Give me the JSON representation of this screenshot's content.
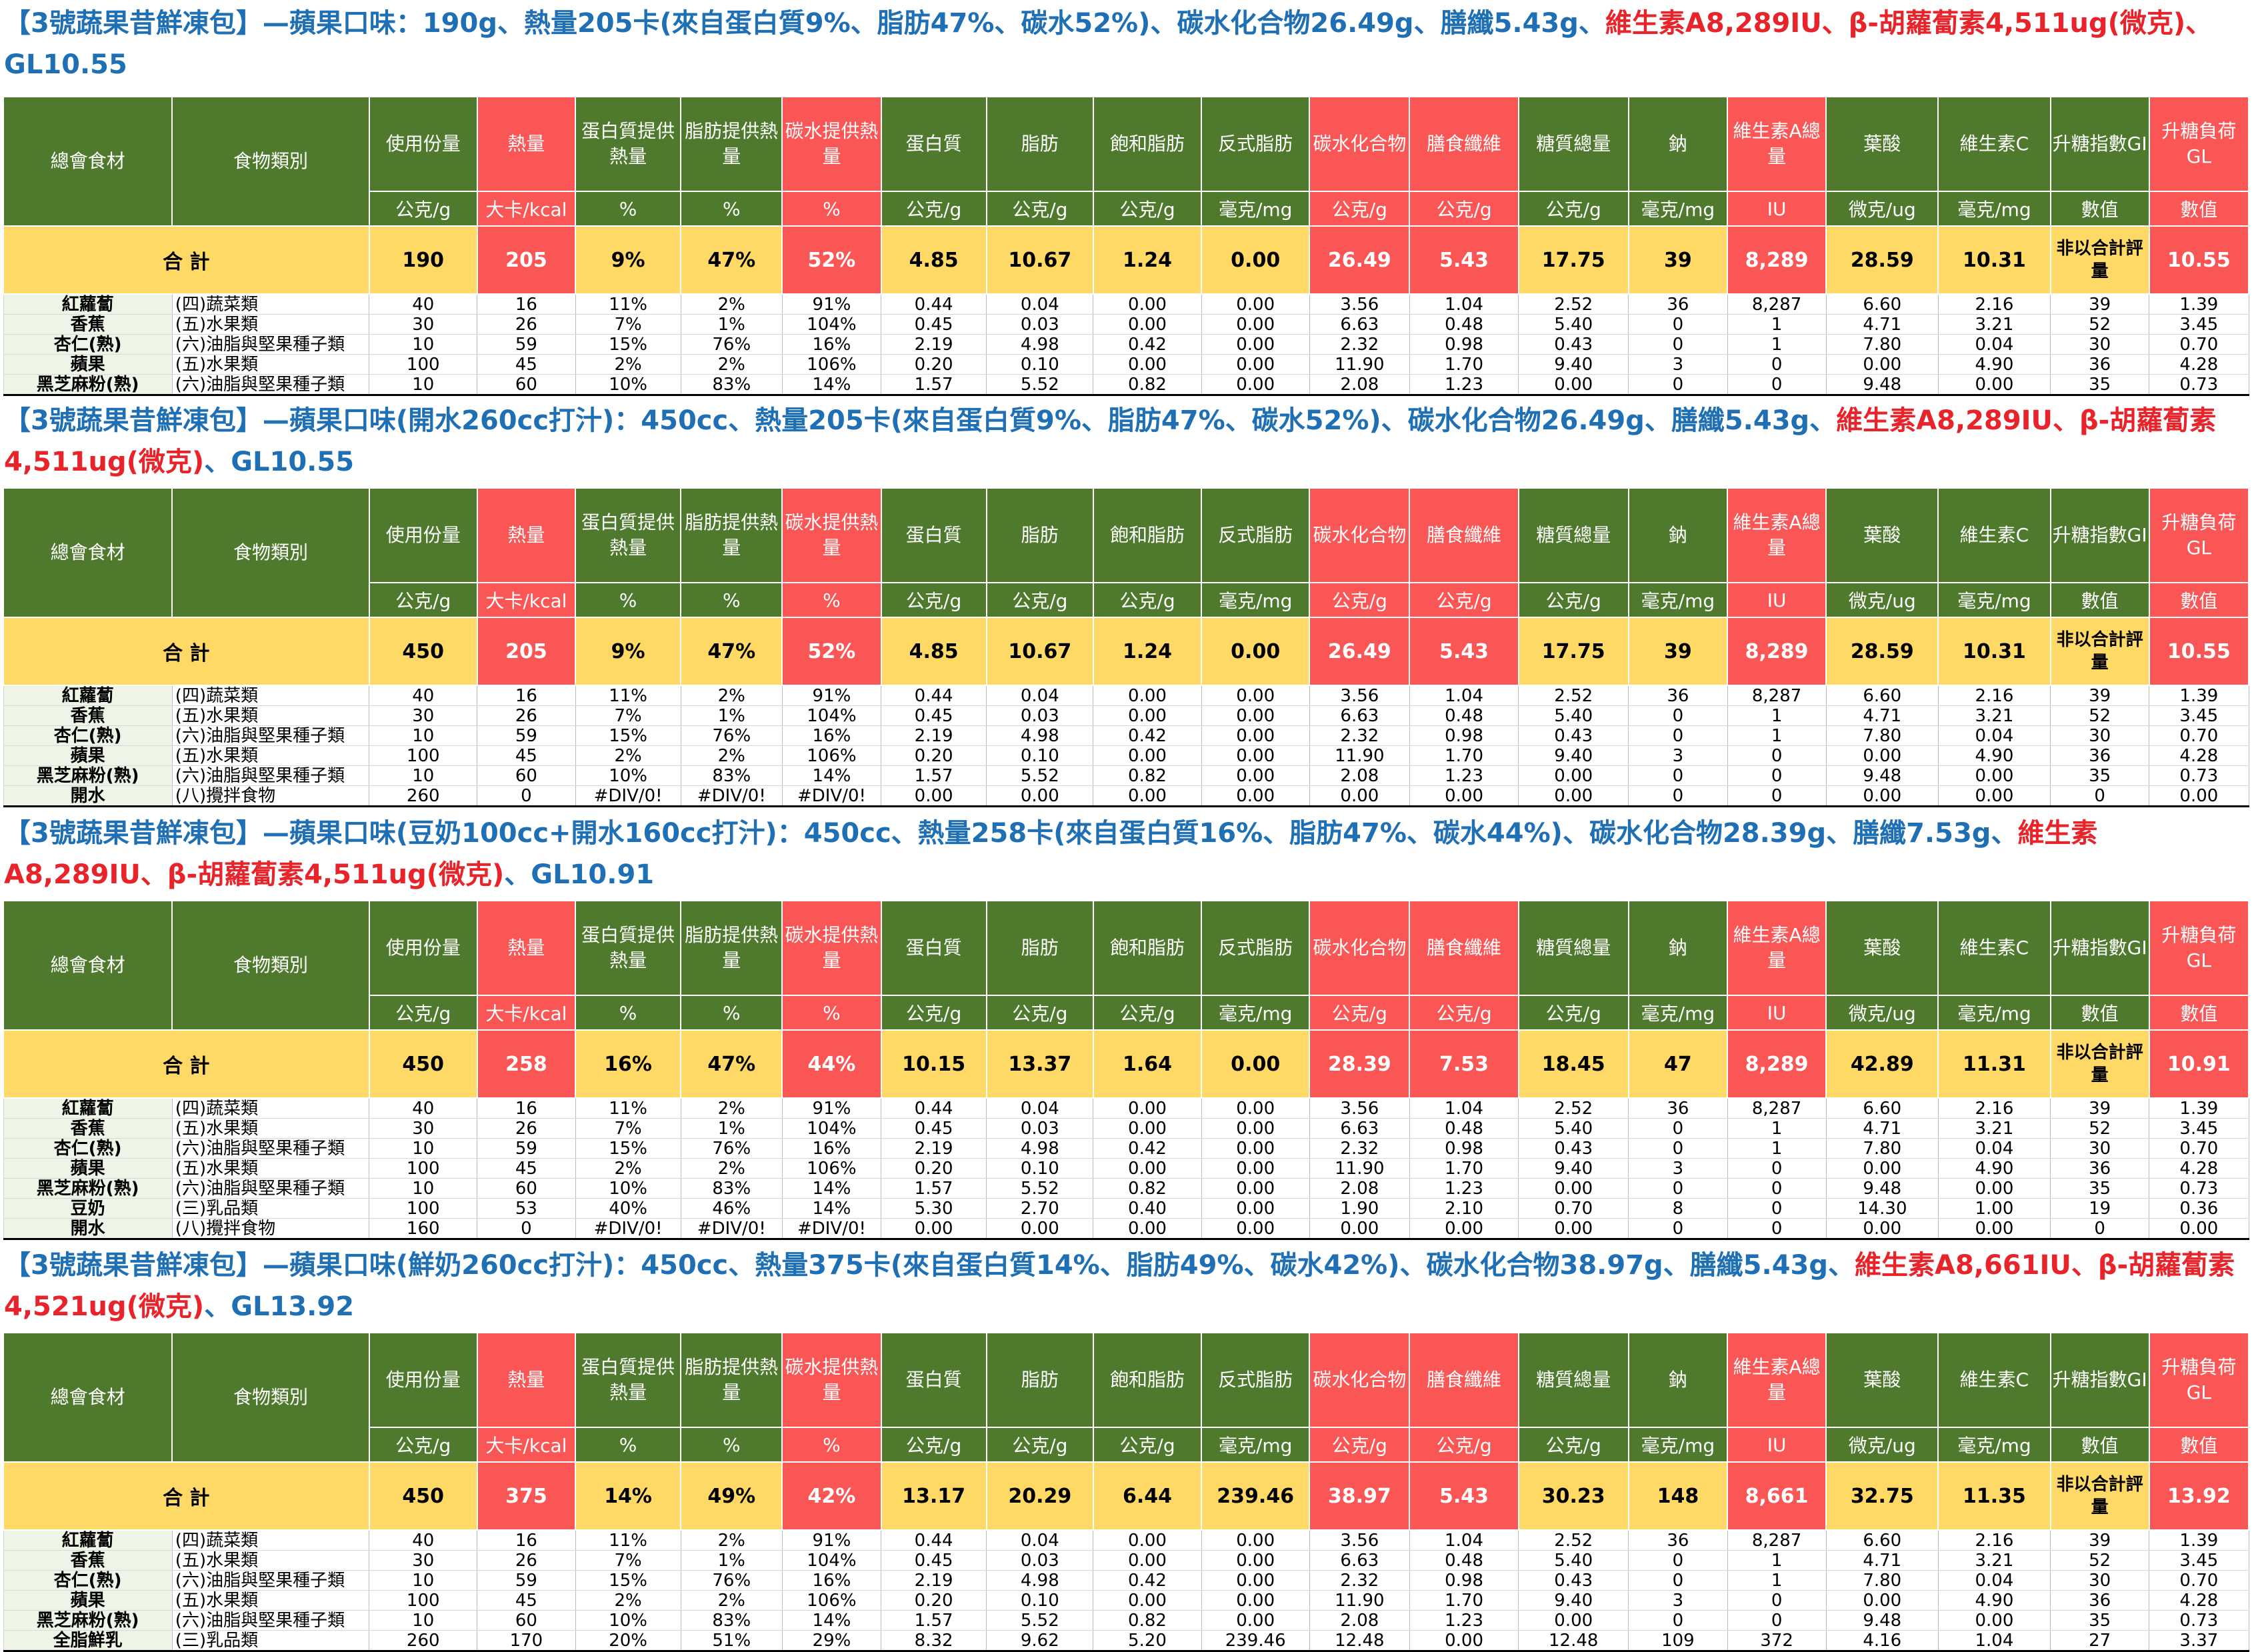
{
  "headers": {
    "names": [
      "總會食材",
      "食物類別",
      "使用份量",
      "熱量",
      "蛋白質提供熱量",
      "脂肪提供熱量",
      "碳水提供熱量",
      "蛋白質",
      "脂肪",
      "飽和脂肪",
      "反式脂肪",
      "碳水化合物",
      "膳食纖維",
      "糖質總量",
      "鈉",
      "維生素A總量",
      "葉酸",
      "維生素C",
      "升糖指數GI",
      "升糖負荷GL"
    ],
    "units": [
      "公克/g",
      "大卡/kcal",
      "%",
      "%",
      "%",
      "公克/g",
      "公克/g",
      "公克/g",
      "毫克/mg",
      "公克/g",
      "公克/g",
      "公克/g",
      "毫克/mg",
      "IU",
      "微克/ug",
      "毫克/mg",
      "數值",
      "數值"
    ],
    "total_label": "合 計",
    "gi_total": "非以合計評量"
  },
  "sections": [
    {
      "title_parts": [
        {
          "text": "【3號蔬果昔鮮凍包】—蘋果口味：190g、熱量205卡(來自蛋白質9%、脂肪47%、碳水52%)、碳水化合物26.49g、膳纖5.43g、",
          "red": false
        },
        {
          "text": "維生素A8,289IU、β-胡蘿蔔素4,511ug(微克)、",
          "red": true
        },
        {
          "text": "GL10.55",
          "red": false
        }
      ],
      "total": [
        "190",
        "205",
        "9%",
        "47%",
        "52%",
        "4.85",
        "10.67",
        "1.24",
        "0.00",
        "26.49",
        "5.43",
        "17.75",
        "39",
        "8,289",
        "28.59",
        "10.31",
        "10.55"
      ],
      "rows": [
        [
          "紅蘿蔔",
          "(四)蔬菜類",
          "40",
          "16",
          "11%",
          "2%",
          "91%",
          "0.44",
          "0.04",
          "0.00",
          "0.00",
          "3.56",
          "1.04",
          "2.52",
          "36",
          "8,287",
          "6.60",
          "2.16",
          "39",
          "1.39"
        ],
        [
          "香蕉",
          "(五)水果類",
          "30",
          "26",
          "7%",
          "1%",
          "104%",
          "0.45",
          "0.03",
          "0.00",
          "0.00",
          "6.63",
          "0.48",
          "5.40",
          "0",
          "1",
          "4.71",
          "3.21",
          "52",
          "3.45"
        ],
        [
          "杏仁(熟)",
          "(六)油脂與堅果種子類",
          "10",
          "59",
          "15%",
          "76%",
          "16%",
          "2.19",
          "4.98",
          "0.42",
          "0.00",
          "2.32",
          "0.98",
          "0.43",
          "0",
          "1",
          "7.80",
          "0.04",
          "30",
          "0.70"
        ],
        [
          "蘋果",
          "(五)水果類",
          "100",
          "45",
          "2%",
          "2%",
          "106%",
          "0.20",
          "0.10",
          "0.00",
          "0.00",
          "11.90",
          "1.70",
          "9.40",
          "3",
          "0",
          "0.00",
          "4.90",
          "36",
          "4.28"
        ],
        [
          "黑芝麻粉(熟)",
          "(六)油脂與堅果種子類",
          "10",
          "60",
          "10%",
          "83%",
          "14%",
          "1.57",
          "5.52",
          "0.82",
          "0.00",
          "2.08",
          "1.23",
          "0.00",
          "0",
          "0",
          "9.48",
          "0.00",
          "35",
          "0.73"
        ]
      ]
    },
    {
      "title_parts": [
        {
          "text": "【3號蔬果昔鮮凍包】—蘋果口味(開水260cc打汁)：450cc、熱量205卡(來自蛋白質9%、脂肪47%、碳水52%)、碳水化合物26.49g、膳纖5.43g、",
          "red": false
        },
        {
          "text": "維生素A8,289IU、β-胡蘿蔔素4,511ug(微克)",
          "red": true
        },
        {
          "text": "、GL10.55",
          "red": false
        }
      ],
      "total": [
        "450",
        "205",
        "9%",
        "47%",
        "52%",
        "4.85",
        "10.67",
        "1.24",
        "0.00",
        "26.49",
        "5.43",
        "17.75",
        "39",
        "8,289",
        "28.59",
        "10.31",
        "10.55"
      ],
      "rows": [
        [
          "紅蘿蔔",
          "(四)蔬菜類",
          "40",
          "16",
          "11%",
          "2%",
          "91%",
          "0.44",
          "0.04",
          "0.00",
          "0.00",
          "3.56",
          "1.04",
          "2.52",
          "36",
          "8,287",
          "6.60",
          "2.16",
          "39",
          "1.39"
        ],
        [
          "香蕉",
          "(五)水果類",
          "30",
          "26",
          "7%",
          "1%",
          "104%",
          "0.45",
          "0.03",
          "0.00",
          "0.00",
          "6.63",
          "0.48",
          "5.40",
          "0",
          "1",
          "4.71",
          "3.21",
          "52",
          "3.45"
        ],
        [
          "杏仁(熟)",
          "(六)油脂與堅果種子類",
          "10",
          "59",
          "15%",
          "76%",
          "16%",
          "2.19",
          "4.98",
          "0.42",
          "0.00",
          "2.32",
          "0.98",
          "0.43",
          "0",
          "1",
          "7.80",
          "0.04",
          "30",
          "0.70"
        ],
        [
          "蘋果",
          "(五)水果類",
          "100",
          "45",
          "2%",
          "2%",
          "106%",
          "0.20",
          "0.10",
          "0.00",
          "0.00",
          "11.90",
          "1.70",
          "9.40",
          "3",
          "0",
          "0.00",
          "4.90",
          "36",
          "4.28"
        ],
        [
          "黑芝麻粉(熟)",
          "(六)油脂與堅果種子類",
          "10",
          "60",
          "10%",
          "83%",
          "14%",
          "1.57",
          "5.52",
          "0.82",
          "0.00",
          "2.08",
          "1.23",
          "0.00",
          "0",
          "0",
          "9.48",
          "0.00",
          "35",
          "0.73"
        ],
        [
          "開水",
          "(八)攪拌食物",
          "260",
          "0",
          "#DIV/0!",
          "#DIV/0!",
          "#DIV/0!",
          "0.00",
          "0.00",
          "0.00",
          "0.00",
          "0.00",
          "0.00",
          "0.00",
          "0",
          "0",
          "0.00",
          "0.00",
          "0",
          "0.00"
        ]
      ]
    },
    {
      "title_parts": [
        {
          "text": "【3號蔬果昔鮮凍包】—蘋果口味(豆奶100cc+開水160cc打汁)：450cc、熱量258卡(來自蛋白質16%、脂肪47%、碳水44%)、碳水化合物28.39g、膳纖7.53g、",
          "red": false
        },
        {
          "text": "維生素A8,289IU、β-胡蘿蔔素4,511ug(微克)",
          "red": true
        },
        {
          "text": "、GL10.91",
          "red": false
        }
      ],
      "total": [
        "450",
        "258",
        "16%",
        "47%",
        "44%",
        "10.15",
        "13.37",
        "1.64",
        "0.00",
        "28.39",
        "7.53",
        "18.45",
        "47",
        "8,289",
        "42.89",
        "11.31",
        "10.91"
      ],
      "rows": [
        [
          "紅蘿蔔",
          "(四)蔬菜類",
          "40",
          "16",
          "11%",
          "2%",
          "91%",
          "0.44",
          "0.04",
          "0.00",
          "0.00",
          "3.56",
          "1.04",
          "2.52",
          "36",
          "8,287",
          "6.60",
          "2.16",
          "39",
          "1.39"
        ],
        [
          "香蕉",
          "(五)水果類",
          "30",
          "26",
          "7%",
          "1%",
          "104%",
          "0.45",
          "0.03",
          "0.00",
          "0.00",
          "6.63",
          "0.48",
          "5.40",
          "0",
          "1",
          "4.71",
          "3.21",
          "52",
          "3.45"
        ],
        [
          "杏仁(熟)",
          "(六)油脂與堅果種子類",
          "10",
          "59",
          "15%",
          "76%",
          "16%",
          "2.19",
          "4.98",
          "0.42",
          "0.00",
          "2.32",
          "0.98",
          "0.43",
          "0",
          "1",
          "7.80",
          "0.04",
          "30",
          "0.70"
        ],
        [
          "蘋果",
          "(五)水果類",
          "100",
          "45",
          "2%",
          "2%",
          "106%",
          "0.20",
          "0.10",
          "0.00",
          "0.00",
          "11.90",
          "1.70",
          "9.40",
          "3",
          "0",
          "0.00",
          "4.90",
          "36",
          "4.28"
        ],
        [
          "黑芝麻粉(熟)",
          "(六)油脂與堅果種子類",
          "10",
          "60",
          "10%",
          "83%",
          "14%",
          "1.57",
          "5.52",
          "0.82",
          "0.00",
          "2.08",
          "1.23",
          "0.00",
          "0",
          "0",
          "9.48",
          "0.00",
          "35",
          "0.73"
        ],
        [
          "豆奶",
          "(三)乳品類",
          "100",
          "53",
          "40%",
          "46%",
          "14%",
          "5.30",
          "2.70",
          "0.40",
          "0.00",
          "1.90",
          "2.10",
          "0.70",
          "8",
          "0",
          "14.30",
          "1.00",
          "19",
          "0.36"
        ],
        [
          "開水",
          "(八)攪拌食物",
          "160",
          "0",
          "#DIV/0!",
          "#DIV/0!",
          "#DIV/0!",
          "0.00",
          "0.00",
          "0.00",
          "0.00",
          "0.00",
          "0.00",
          "0.00",
          "0",
          "0",
          "0.00",
          "0.00",
          "0",
          "0.00"
        ]
      ]
    },
    {
      "title_parts": [
        {
          "text": "【3號蔬果昔鮮凍包】—蘋果口味(鮮奶260cc打汁)：450cc、熱量375卡(來自蛋白質14%、脂肪49%、碳水42%)、碳水化合物38.97g、膳纖5.43g、",
          "red": false
        },
        {
          "text": "維生素A8,661IU、β-胡蘿蔔素4,521ug(微克)",
          "red": true
        },
        {
          "text": "、GL13.92",
          "red": false
        }
      ],
      "total": [
        "450",
        "375",
        "14%",
        "49%",
        "42%",
        "13.17",
        "20.29",
        "6.44",
        "239.46",
        "38.97",
        "5.43",
        "30.23",
        "148",
        "8,661",
        "32.75",
        "11.35",
        "13.92"
      ],
      "rows": [
        [
          "紅蘿蔔",
          "(四)蔬菜類",
          "40",
          "16",
          "11%",
          "2%",
          "91%",
          "0.44",
          "0.04",
          "0.00",
          "0.00",
          "3.56",
          "1.04",
          "2.52",
          "36",
          "8,287",
          "6.60",
          "2.16",
          "39",
          "1.39"
        ],
        [
          "香蕉",
          "(五)水果類",
          "30",
          "26",
          "7%",
          "1%",
          "104%",
          "0.45",
          "0.03",
          "0.00",
          "0.00",
          "6.63",
          "0.48",
          "5.40",
          "0",
          "1",
          "4.71",
          "3.21",
          "52",
          "3.45"
        ],
        [
          "杏仁(熟)",
          "(六)油脂與堅果種子類",
          "10",
          "59",
          "15%",
          "76%",
          "16%",
          "2.19",
          "4.98",
          "0.42",
          "0.00",
          "2.32",
          "0.98",
          "0.43",
          "0",
          "1",
          "7.80",
          "0.04",
          "30",
          "0.70"
        ],
        [
          "蘋果",
          "(五)水果類",
          "100",
          "45",
          "2%",
          "2%",
          "106%",
          "0.20",
          "0.10",
          "0.00",
          "0.00",
          "11.90",
          "1.70",
          "9.40",
          "3",
          "0",
          "0.00",
          "4.90",
          "36",
          "4.28"
        ],
        [
          "黑芝麻粉(熟)",
          "(六)油脂與堅果種子類",
          "10",
          "60",
          "10%",
          "83%",
          "14%",
          "1.57",
          "5.52",
          "0.82",
          "0.00",
          "2.08",
          "1.23",
          "0.00",
          "0",
          "0",
          "9.48",
          "0.00",
          "35",
          "0.73"
        ],
        [
          "全脂鮮乳",
          "(三)乳品類",
          "260",
          "170",
          "20%",
          "51%",
          "29%",
          "8.32",
          "9.62",
          "5.20",
          "239.46",
          "12.48",
          "0.00",
          "12.48",
          "109",
          "372",
          "4.16",
          "1.04",
          "27",
          "3.37"
        ]
      ]
    }
  ]
}
